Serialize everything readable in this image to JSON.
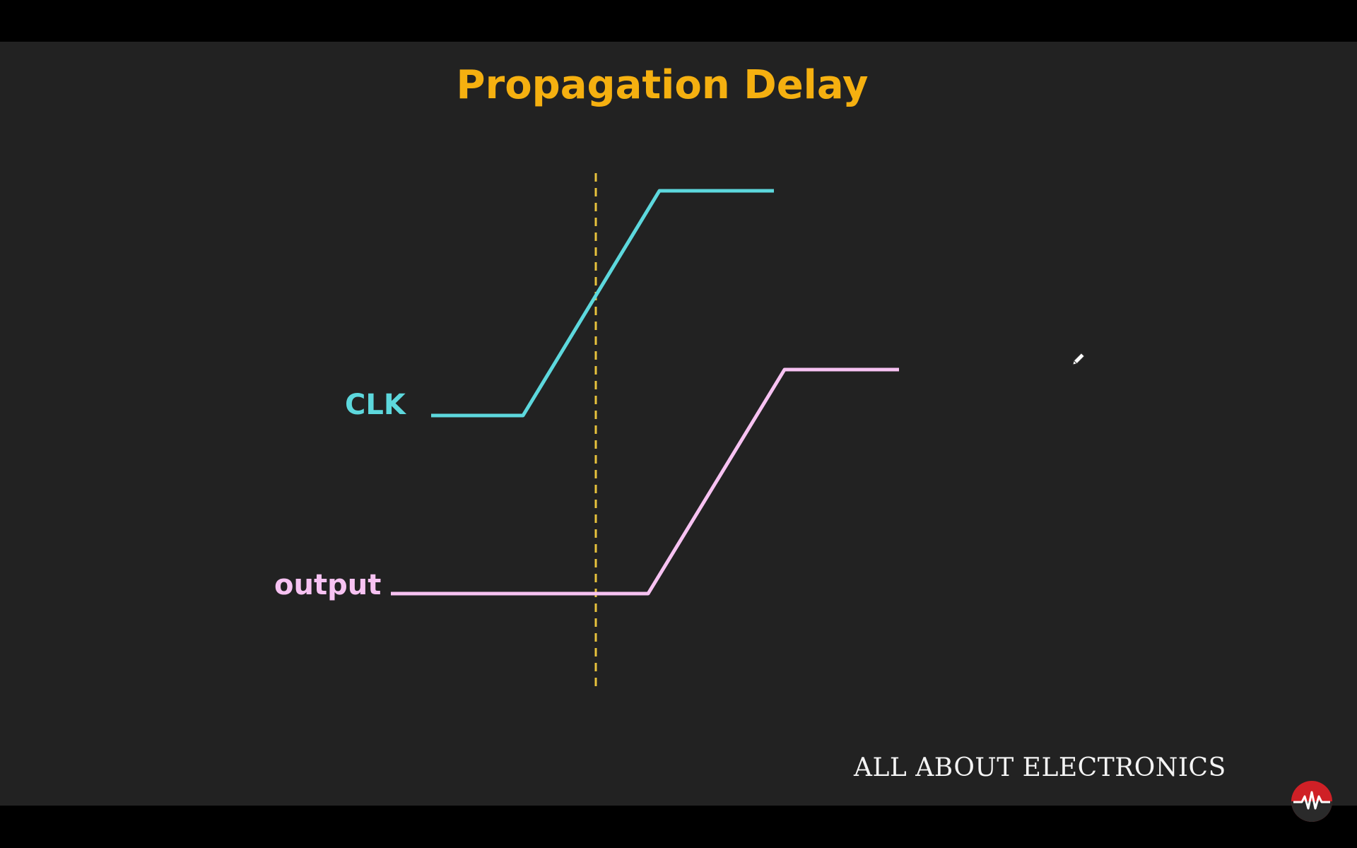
{
  "title": "Propagation Delay",
  "signals": {
    "clk_label": "CLK",
    "output_label": "output"
  },
  "brand": "ALL ABOUT ELECTRONICS",
  "icons": {
    "logo": "waveform-logo-icon",
    "cursor": "pencil-cursor-icon"
  },
  "colors": {
    "title": "#f5b010",
    "clk": "#5dd8dd",
    "output": "#f7c2f2",
    "marker": "#e8c33c",
    "background": "#222222",
    "logo": "#cf2026"
  }
}
